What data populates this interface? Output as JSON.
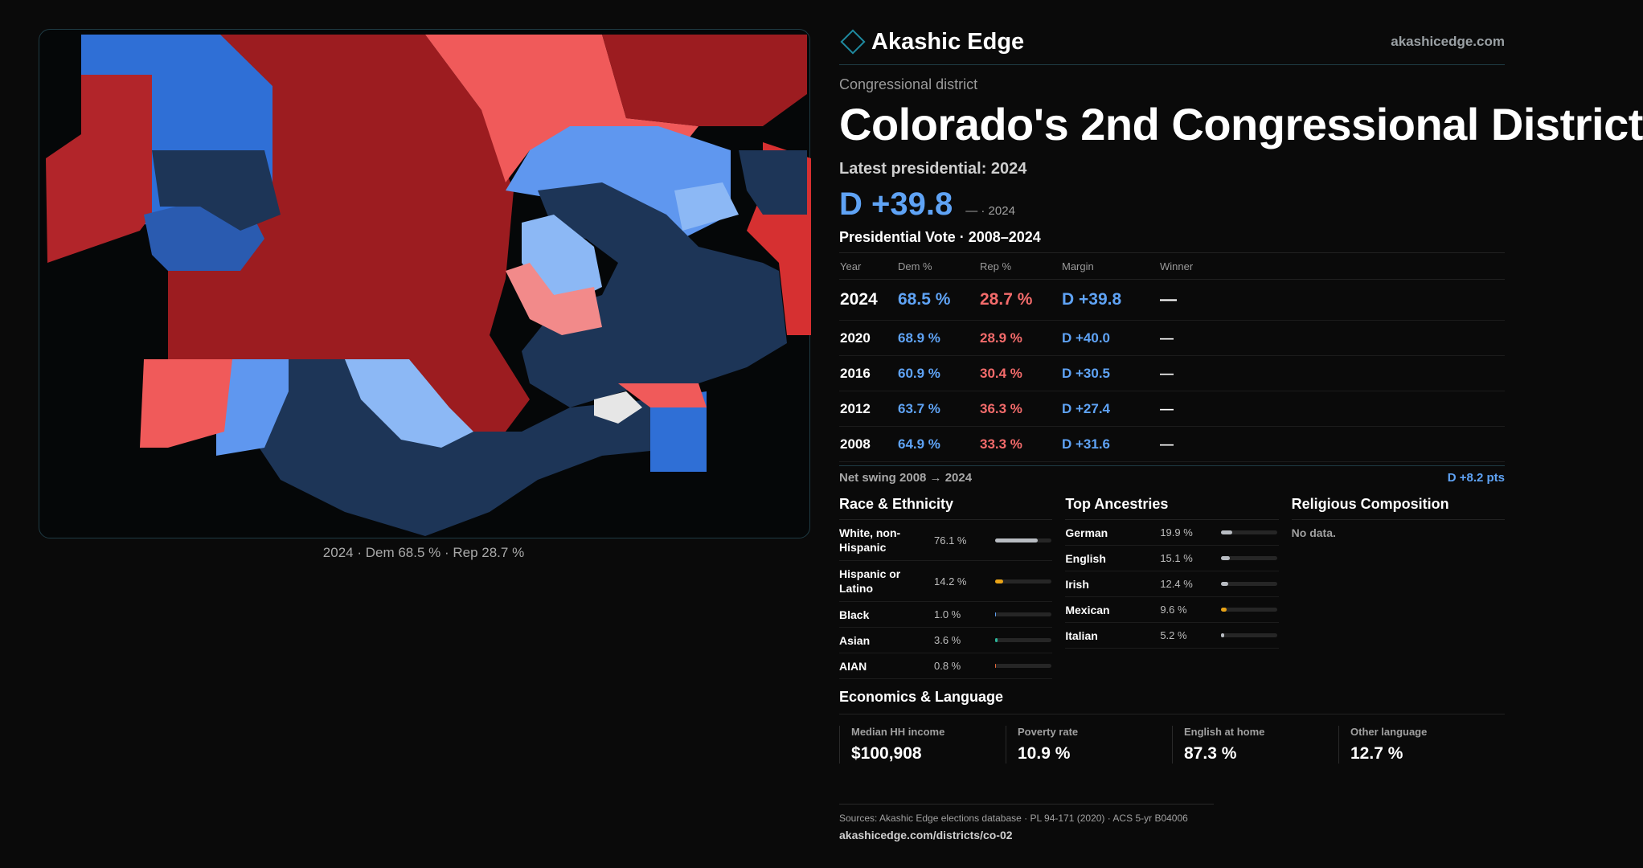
{
  "colors": {
    "dem": "#5fa3f5",
    "rep": "#f36b6b",
    "accent": "#1f8aa0",
    "dem_dark": "#1d3557",
    "rep_dark": "#a11d21"
  },
  "brand": {
    "name": "Akashic Edge",
    "url": "akashicedge.com",
    "icon": "diamond-logo-icon"
  },
  "map": {
    "caption": "2024 · Dem 68.5 % · Rep 28.7 %"
  },
  "header": {
    "eyebrow": "Congressional district",
    "title": "Colorado's 2nd Congressional District",
    "latest_label": "Latest presidential: 2024",
    "lean": "D +39.8",
    "lean_note": "— · 2024"
  },
  "presidential": {
    "heading": "Presidential Vote · 2008–2024",
    "columns": [
      "Year",
      "Dem %",
      "Rep %",
      "Margin",
      "Winner"
    ],
    "rows": [
      {
        "year": "2024",
        "dem": "68.5 %",
        "rep": "28.7 %",
        "margin": "D +39.8",
        "winner": "—"
      },
      {
        "year": "2020",
        "dem": "68.9 %",
        "rep": "28.9 %",
        "margin": "D +40.0",
        "winner": "—"
      },
      {
        "year": "2016",
        "dem": "60.9 %",
        "rep": "30.4 %",
        "margin": "D +30.5",
        "winner": "—"
      },
      {
        "year": "2012",
        "dem": "63.7 %",
        "rep": "36.3 %",
        "margin": "D +27.4",
        "winner": "—"
      },
      {
        "year": "2008",
        "dem": "64.9 %",
        "rep": "33.3 %",
        "margin": "D +31.6",
        "winner": "—"
      }
    ],
    "swing_label": "Net swing 2008 → 2024",
    "swing_value": "D +8.2 pts"
  },
  "race": {
    "heading": "Race & Ethnicity",
    "items": [
      {
        "label": "White, non-Hispanic",
        "pct": "76.1 %",
        "value": 76.1,
        "color": "#b8bcc2"
      },
      {
        "label": "Hispanic or Latino",
        "pct": "14.2 %",
        "value": 14.2,
        "color": "#e8a317"
      },
      {
        "label": "Black",
        "pct": "1.0 %",
        "value": 1.0,
        "color": "#5fa3f5"
      },
      {
        "label": "Asian",
        "pct": "3.6 %",
        "value": 3.6,
        "color": "#2bb59a"
      },
      {
        "label": "AIAN",
        "pct": "0.8 %",
        "value": 0.8,
        "color": "#e86a3a"
      }
    ]
  },
  "ancestry": {
    "heading": "Top Ancestries",
    "items": [
      {
        "label": "German",
        "pct": "19.9 %",
        "value": 19.9,
        "color": "#b8bcc2"
      },
      {
        "label": "English",
        "pct": "15.1 %",
        "value": 15.1,
        "color": "#b8bcc2"
      },
      {
        "label": "Irish",
        "pct": "12.4 %",
        "value": 12.4,
        "color": "#b8bcc2"
      },
      {
        "label": "Mexican",
        "pct": "9.6 %",
        "value": 9.6,
        "color": "#e8a317"
      },
      {
        "label": "Italian",
        "pct": "5.2 %",
        "value": 5.2,
        "color": "#b8bcc2"
      }
    ]
  },
  "religion": {
    "heading": "Religious Composition",
    "note": "No data."
  },
  "economics": {
    "heading": "Economics & Language",
    "cells": [
      {
        "label": "Median HH income",
        "value": "$100,908"
      },
      {
        "label": "Poverty rate",
        "value": "10.9 %"
      },
      {
        "label": "English at home",
        "value": "87.3 %"
      },
      {
        "label": "Other language",
        "value": "12.7 %"
      }
    ]
  },
  "sources": {
    "text": "Sources: Akashic Edge elections database · PL 94-171 (2020) · ACS 5-yr B04006",
    "url": "akashicedge.com/districts/co-02"
  }
}
